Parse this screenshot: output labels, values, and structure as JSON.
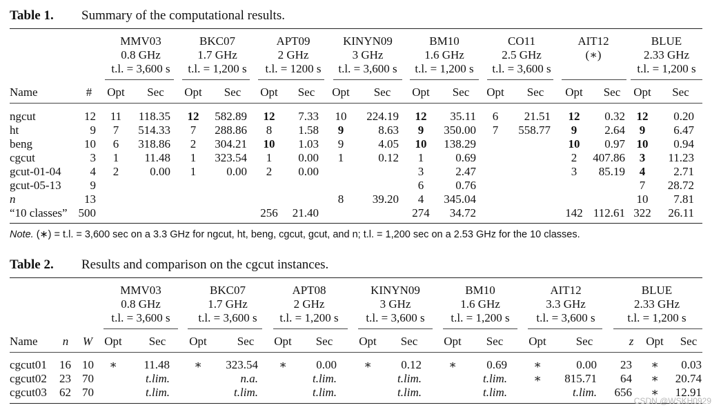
{
  "table1": {
    "label": "Table 1.",
    "title": "Summary of the computational results.",
    "groups": [
      {
        "name": "MMV03",
        "speed": "0.8 GHz",
        "limit": "t.l. = 3,600 s"
      },
      {
        "name": "BKC07",
        "speed": "1.7 GHz",
        "limit": "t.l. = 1,200 s"
      },
      {
        "name": "APT09",
        "speed": "2 GHz",
        "limit": "t.l. = 1200 s"
      },
      {
        "name": "KINYN09",
        "speed": "3 GHz",
        "limit": "t.l. = 3,600 s"
      },
      {
        "name": "BM10",
        "speed": "1.6 GHz",
        "limit": "t.l. = 1,200 s"
      },
      {
        "name": "CO11",
        "speed": "2.5 GHz",
        "limit": "t.l. = 3,600 s"
      },
      {
        "name": "AIT12",
        "speed": "(∗)",
        "limit": ""
      },
      {
        "name": "BLUE",
        "speed": "2.33 GHz",
        "limit": "t.l. = 1,200 s"
      }
    ],
    "header": {
      "name": "Name",
      "count": "#",
      "opt": "Opt",
      "sec": "Sec"
    },
    "rows": [
      {
        "name": "ngcut",
        "n": "12",
        "cells": [
          [
            "11",
            "118.35"
          ],
          [
            "12",
            "582.89"
          ],
          [
            "12",
            "7.33"
          ],
          [
            "10",
            "224.19"
          ],
          [
            "12",
            "35.11"
          ],
          [
            "6",
            "21.51"
          ],
          [
            "12",
            "0.32"
          ],
          [
            "12",
            "0.20"
          ]
        ]
      },
      {
        "name": "ht",
        "n": "9",
        "cells": [
          [
            "7",
            "514.33"
          ],
          [
            "7",
            "288.86"
          ],
          [
            "8",
            "1.58"
          ],
          [
            "9",
            "8.63"
          ],
          [
            "9",
            "350.00"
          ],
          [
            "7",
            "558.77"
          ],
          [
            "9",
            "2.64"
          ],
          [
            "9",
            "6.47"
          ]
        ]
      },
      {
        "name": "beng",
        "n": "10",
        "cells": [
          [
            "6",
            "318.86"
          ],
          [
            "2",
            "304.21"
          ],
          [
            "10",
            "1.03"
          ],
          [
            "9",
            "4.05"
          ],
          [
            "10",
            "138.29"
          ],
          [
            "",
            ""
          ],
          [
            "10",
            "0.97"
          ],
          [
            "10",
            "0.94"
          ]
        ]
      },
      {
        "name": "cgcut",
        "n": "3",
        "cells": [
          [
            "1",
            "11.48"
          ],
          [
            "1",
            "323.54"
          ],
          [
            "1",
            "0.00"
          ],
          [
            "1",
            "0.12"
          ],
          [
            "1",
            "0.69"
          ],
          [
            "",
            ""
          ],
          [
            "2",
            "407.86"
          ],
          [
            "3",
            "11.23"
          ]
        ]
      },
      {
        "name": "gcut-01-04",
        "n": "4",
        "cells": [
          [
            "2",
            "0.00"
          ],
          [
            "1",
            "0.00"
          ],
          [
            "2",
            "0.00"
          ],
          [
            "",
            ""
          ],
          [
            "3",
            "2.47"
          ],
          [
            "",
            ""
          ],
          [
            "3",
            "85.19"
          ],
          [
            "4",
            "2.71"
          ]
        ]
      },
      {
        "name": "gcut-05-13",
        "n": "9",
        "cells": [
          [
            "",
            ""
          ],
          [
            "",
            ""
          ],
          [
            "",
            ""
          ],
          [
            "",
            ""
          ],
          [
            "6",
            "0.76"
          ],
          [
            "",
            ""
          ],
          [
            "",
            ""
          ],
          [
            "7",
            "28.72"
          ]
        ]
      },
      {
        "name": "n",
        "n": "13",
        "cells": [
          [
            "",
            ""
          ],
          [
            "",
            ""
          ],
          [
            "",
            ""
          ],
          [
            "8",
            "39.20"
          ],
          [
            "4",
            "345.04"
          ],
          [
            "",
            ""
          ],
          [
            "",
            ""
          ],
          [
            "10",
            "7.81"
          ]
        ]
      },
      {
        "name": "“10 classes”",
        "n": "500",
        "cells": [
          [
            "",
            ""
          ],
          [
            "",
            ""
          ],
          [
            "256",
            "21.40"
          ],
          [
            "",
            ""
          ],
          [
            "274",
            "34.72"
          ],
          [
            "",
            ""
          ],
          [
            "142",
            "112.61"
          ],
          [
            "322",
            "26.11"
          ]
        ]
      }
    ]
  },
  "note": {
    "label": "Note.",
    "text": "(∗) = t.l. = 3,600 sec on a 3.3 GHz for ngcut, ht, beng, cgcut, gcut, and n; t.l. = 1,200 sec on a 2.53 GHz for the 10 classes."
  },
  "table2": {
    "label": "Table 2.",
    "title": "Results and comparison on the cgcut instances.",
    "groups": [
      {
        "name": "MMV03",
        "speed": "0.8 GHz",
        "limit": "t.l. = 3,600 s"
      },
      {
        "name": "BKC07",
        "speed": "1.7 GHz",
        "limit": "t.l. = 3,600 s"
      },
      {
        "name": "APT08",
        "speed": "2 GHz",
        "limit": "t.l. = 1,200 s"
      },
      {
        "name": "KINYN09",
        "speed": "3 GHz",
        "limit": "t.l. = 3,600 s"
      },
      {
        "name": "BM10",
        "speed": "1.6 GHz",
        "limit": "t.l. = 1,200 s"
      },
      {
        "name": "AIT12",
        "speed": "3.3 GHz",
        "limit": "t.l. = 3,600 s"
      },
      {
        "name": "BLUE",
        "speed": "2.33 GHz",
        "limit": "t.l. = 1,200 s"
      }
    ],
    "header": {
      "name": "Name",
      "n": "n",
      "w": "W",
      "opt": "Opt",
      "sec": "Sec",
      "z": "z"
    },
    "rows": [
      {
        "name": "cgcut01",
        "n": "16",
        "w": "10",
        "cells": [
          [
            "∗",
            "11.48"
          ],
          [
            "∗",
            "323.54"
          ],
          [
            "∗",
            "0.00"
          ],
          [
            "∗",
            "0.12"
          ],
          [
            "∗",
            "0.69"
          ],
          [
            "∗",
            "0.00"
          ]
        ],
        "blue": [
          "23",
          "∗",
          "0.03"
        ]
      },
      {
        "name": "cgcut02",
        "n": "23",
        "w": "70",
        "cells": [
          [
            "",
            "t.lim."
          ],
          [
            "",
            "n.a."
          ],
          [
            "",
            "t.lim."
          ],
          [
            "",
            "t.lim."
          ],
          [
            "",
            "t.lim."
          ],
          [
            "∗",
            "815.71"
          ]
        ],
        "blue": [
          "64",
          "∗",
          "20.74"
        ]
      },
      {
        "name": "cgcut03",
        "n": "62",
        "w": "70",
        "cells": [
          [
            "",
            "t.lim."
          ],
          [
            "",
            "t.lim."
          ],
          [
            "",
            "t.lim."
          ],
          [
            "",
            "t.lim."
          ],
          [
            "",
            "t.lim."
          ],
          [
            "",
            "t.lim."
          ]
        ],
        "blue": [
          "656",
          "∗",
          "12.91"
        ]
      }
    ]
  },
  "watermark": "CSDN @WSKH0929"
}
